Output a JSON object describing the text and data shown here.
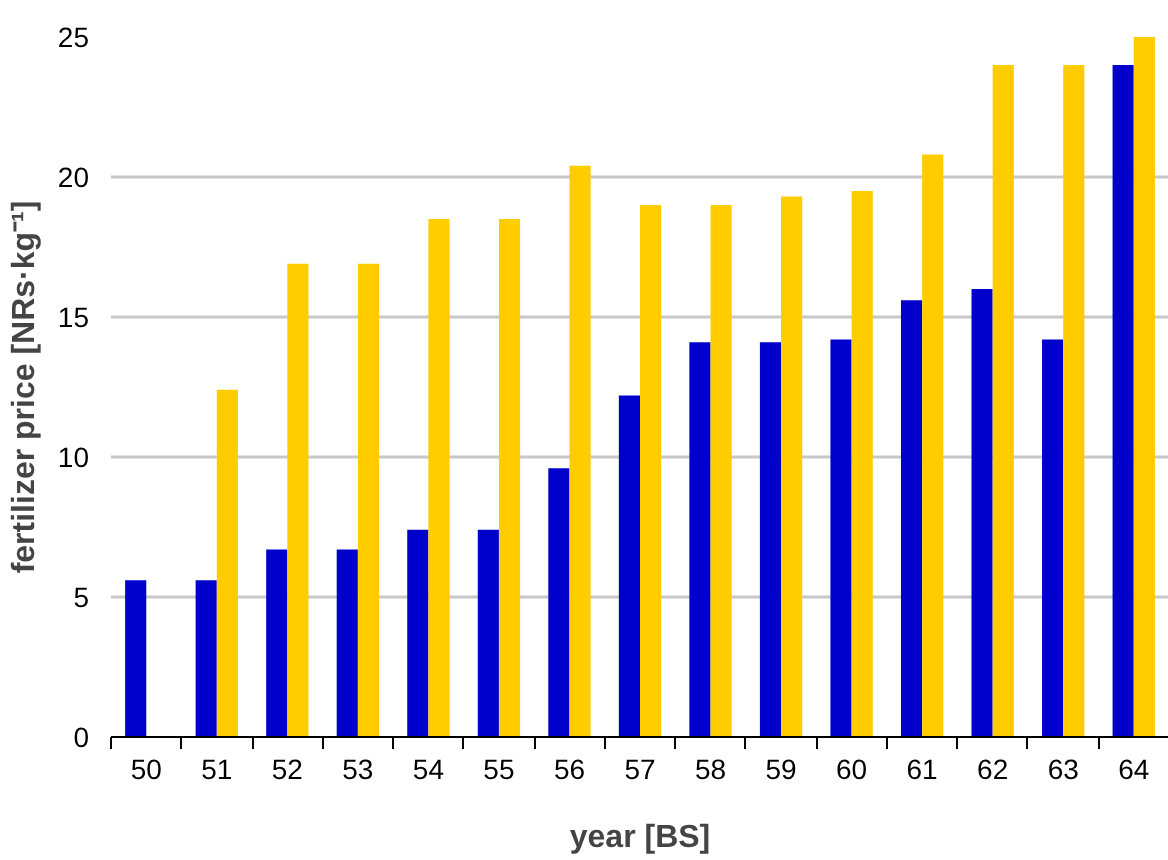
{
  "chart_data": {
    "type": "bar",
    "xlabel": "year [BS]",
    "ylabel": "fertilizer price [NRs·kg⁻¹]",
    "categories": [
      "50",
      "51",
      "52",
      "53",
      "54",
      "55",
      "56",
      "57",
      "58",
      "59",
      "60",
      "61",
      "62",
      "63",
      "64"
    ],
    "series": [
      {
        "color": "#0000cc",
        "values": [
          5.6,
          5.6,
          6.7,
          6.7,
          7.4,
          7.4,
          9.6,
          12.2,
          14.1,
          14.1,
          14.2,
          15.6,
          16.0,
          14.2,
          24.0
        ]
      },
      {
        "color": "#ffcc00",
        "values": [
          null,
          12.4,
          16.9,
          16.9,
          18.5,
          18.5,
          20.4,
          19.0,
          19.0,
          19.3,
          19.5,
          20.8,
          24.0,
          24.0,
          25.0
        ]
      }
    ],
    "ylim": [
      0,
      25
    ],
    "yticks": [
      0,
      5,
      10,
      15,
      20,
      25
    ],
    "grid": "y"
  }
}
